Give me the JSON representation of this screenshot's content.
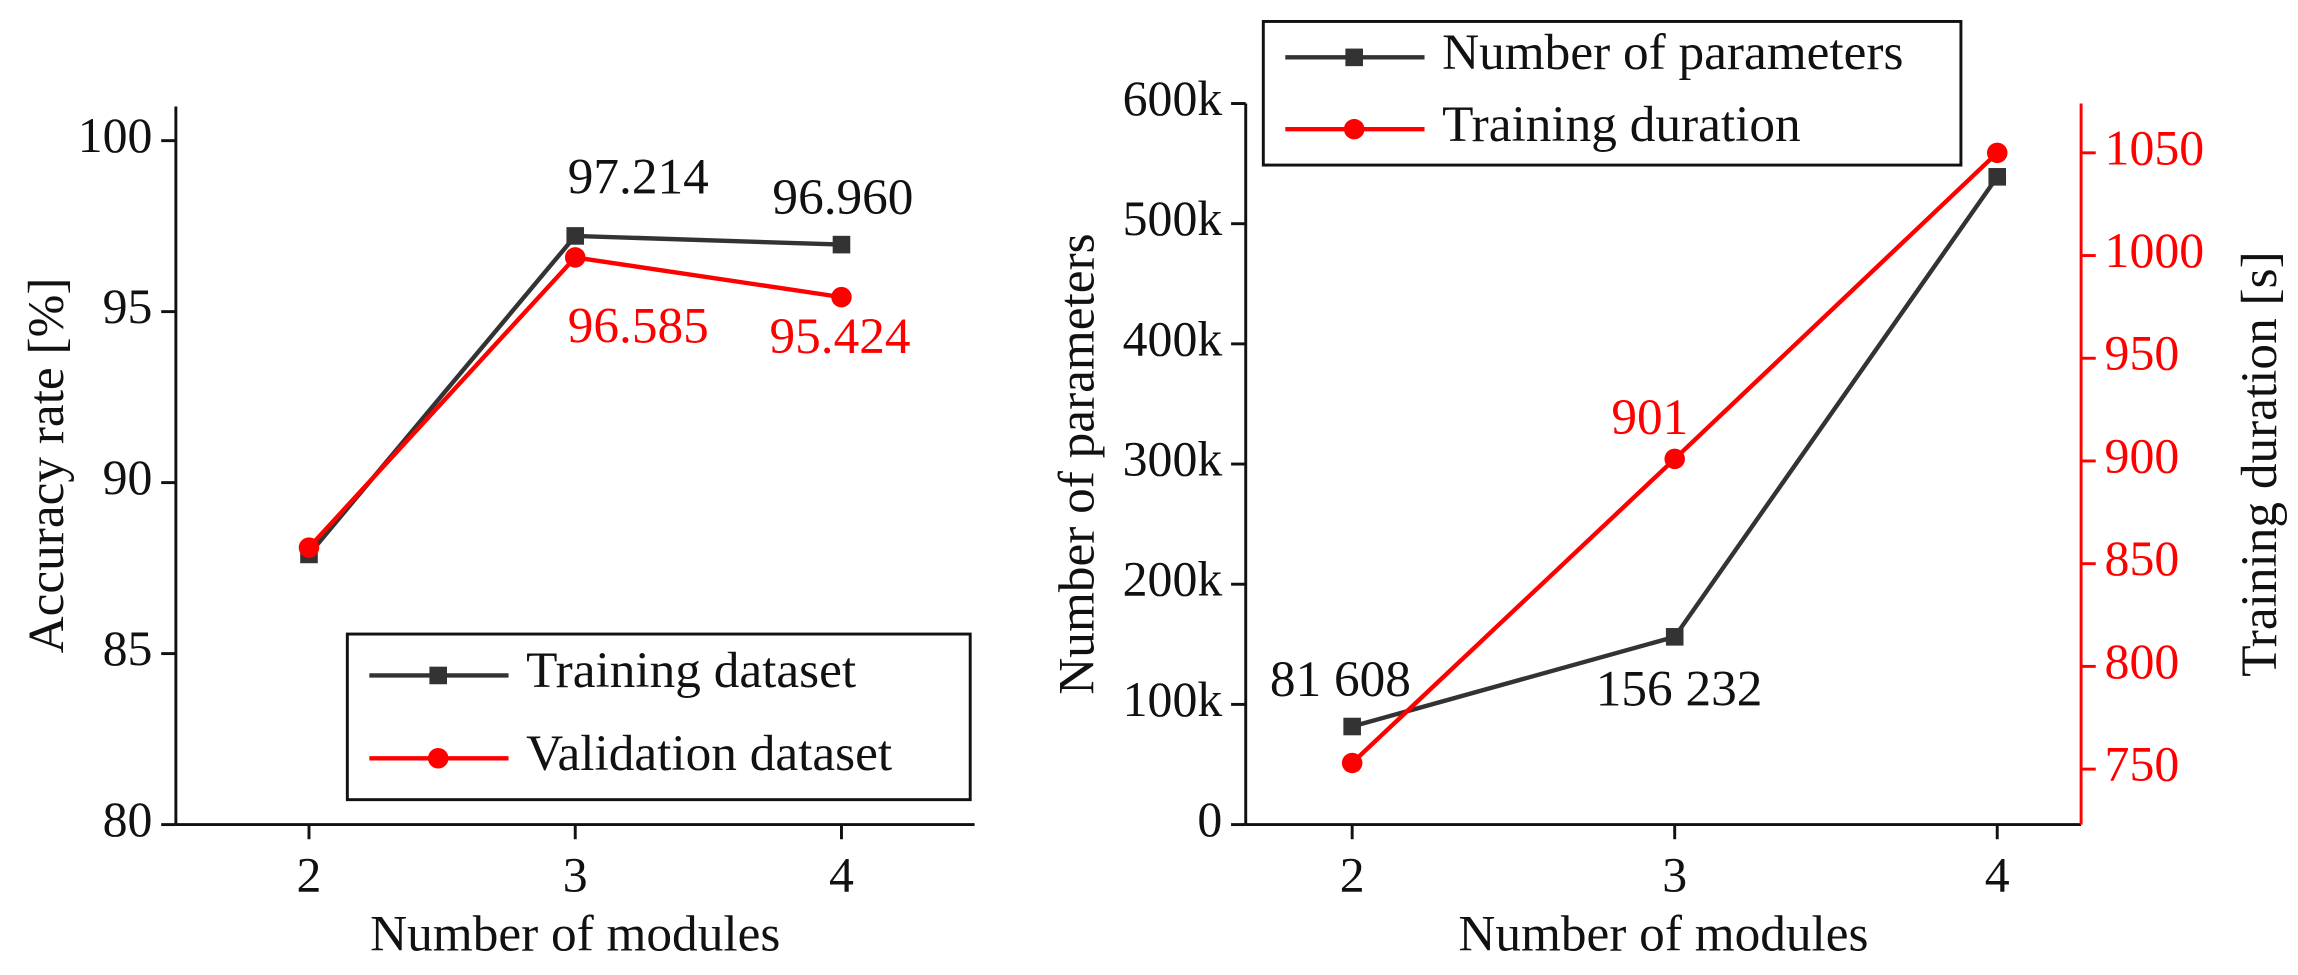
{
  "chart_data": [
    {
      "type": "line",
      "x": [
        2,
        3,
        4
      ],
      "xlim": [
        1.5,
        4.5
      ],
      "xticks": [
        2,
        3,
        4
      ],
      "ylim": [
        80,
        101
      ],
      "yticks": [
        80,
        85,
        90,
        95,
        100
      ],
      "x_label": "Number of modules",
      "y_label": "Accuracy rate [%]",
      "legend": "lower right",
      "series": [
        {
          "name": "Training dataset",
          "color": "#333333",
          "marker": "square",
          "values": [
            87.9,
            97.214,
            96.96
          ],
          "value_labels": [
            null,
            "97.214",
            "96.960"
          ]
        },
        {
          "name": "Validation dataset",
          "color": "#ff0000",
          "marker": "circle",
          "values": [
            88.1,
            96.585,
            95.424
          ],
          "value_labels": [
            null,
            "96.585",
            "95.424"
          ]
        }
      ]
    },
    {
      "type": "line",
      "x": [
        2,
        3,
        4
      ],
      "xlim": [
        1.67,
        4.26
      ],
      "xticks": [
        2,
        3,
        4
      ],
      "ylim": [
        0,
        600000
      ],
      "yticks": [
        0,
        {
          "value": 100000,
          "label": "100k"
        },
        {
          "value": 200000,
          "label": "200k"
        },
        {
          "value": 300000,
          "label": "300k"
        },
        {
          "value": 400000,
          "label": "400k"
        },
        {
          "value": 500000,
          "label": "500k"
        },
        {
          "value": 600000,
          "label": "600k"
        }
      ],
      "y2lim": [
        723,
        1074
      ],
      "y2ticks": [
        750,
        800,
        850,
        900,
        950,
        1000,
        1050
      ],
      "y2color": "#ff0000",
      "x_label": "Number of modules",
      "y_label": "Number of parameters",
      "y2_label": "Training duration [s]",
      "legend": "upper left",
      "series": [
        {
          "name": "Number of parameters",
          "color": "#333333",
          "marker": "square",
          "values": [
            81608,
            156232,
            539000
          ],
          "value_labels": [
            "81 608",
            "156 232",
            null
          ]
        },
        {
          "name": "Training duration",
          "color": "#ff0000",
          "marker": "circle",
          "axis": "y2",
          "values": [
            753,
            901,
            1050
          ],
          "value_labels": [
            null,
            "901",
            null
          ]
        }
      ]
    }
  ]
}
